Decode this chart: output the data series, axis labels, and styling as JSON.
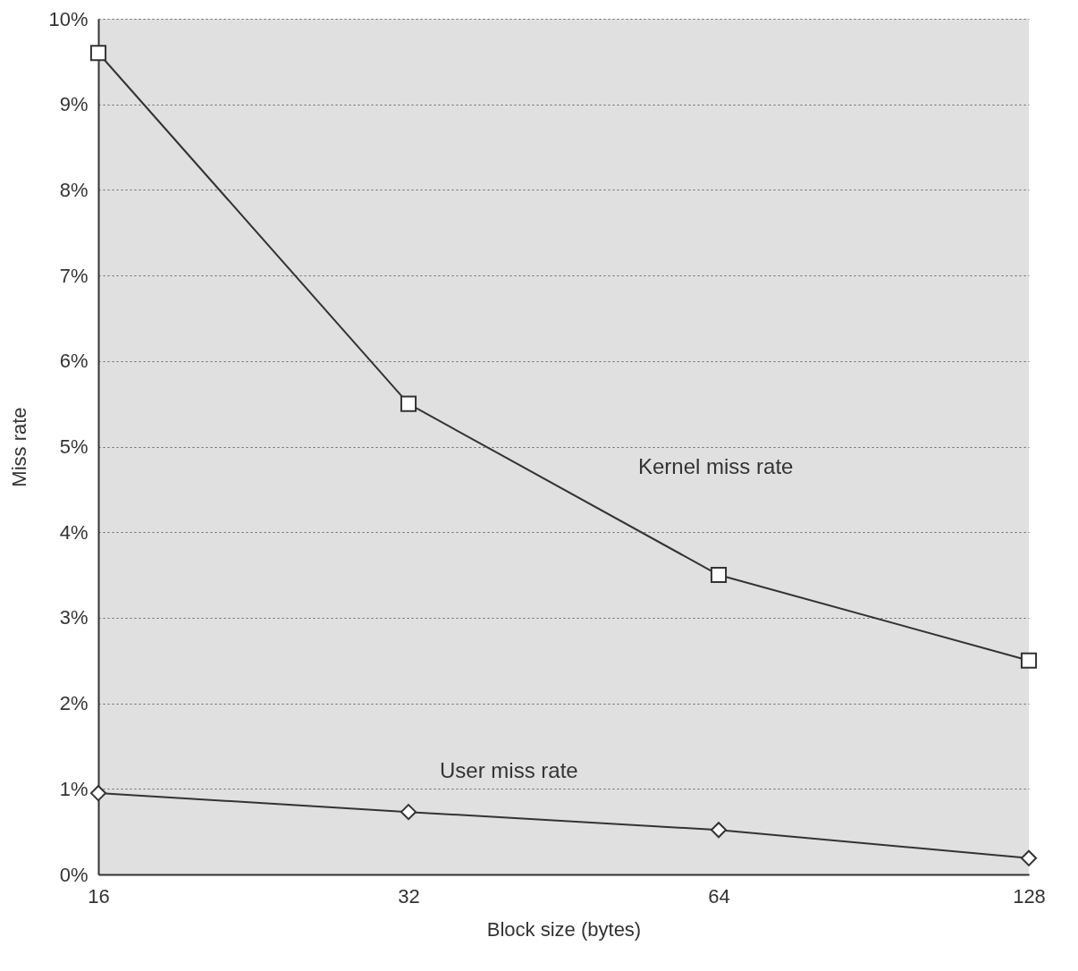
{
  "chart_data": {
    "type": "line",
    "xlabel": "Block size (bytes)",
    "ylabel": "Miss rate",
    "x": [
      16,
      32,
      64,
      128
    ],
    "log": "x",
    "xlim": [
      16,
      128
    ],
    "xticks": [
      16,
      32,
      64,
      128
    ],
    "ylim": [
      0,
      10
    ],
    "yticks": [
      {
        "value": 0,
        "label": "0%"
      },
      {
        "value": 1,
        "label": "1%"
      },
      {
        "value": 2,
        "label": "2%"
      },
      {
        "value": 3,
        "label": "3%"
      },
      {
        "value": 4,
        "label": "4%"
      },
      {
        "value": 5,
        "label": "5%"
      },
      {
        "value": 6,
        "label": "6%"
      },
      {
        "value": 7,
        "label": "7%"
      },
      {
        "value": 8,
        "label": "8%"
      },
      {
        "value": 9,
        "label": "9%"
      },
      {
        "value": 10,
        "label": "10%"
      }
    ],
    "grid": "y",
    "series": [
      {
        "name": "Kernel miss rate",
        "color": "#333333",
        "marker": "square",
        "values": [
          9.6,
          5.5,
          3.5,
          2.5
        ]
      },
      {
        "name": "User miss rate",
        "color": "#333333",
        "marker": "diamond",
        "values": [
          0.95,
          0.73,
          0.52,
          0.19
        ]
      }
    ]
  }
}
